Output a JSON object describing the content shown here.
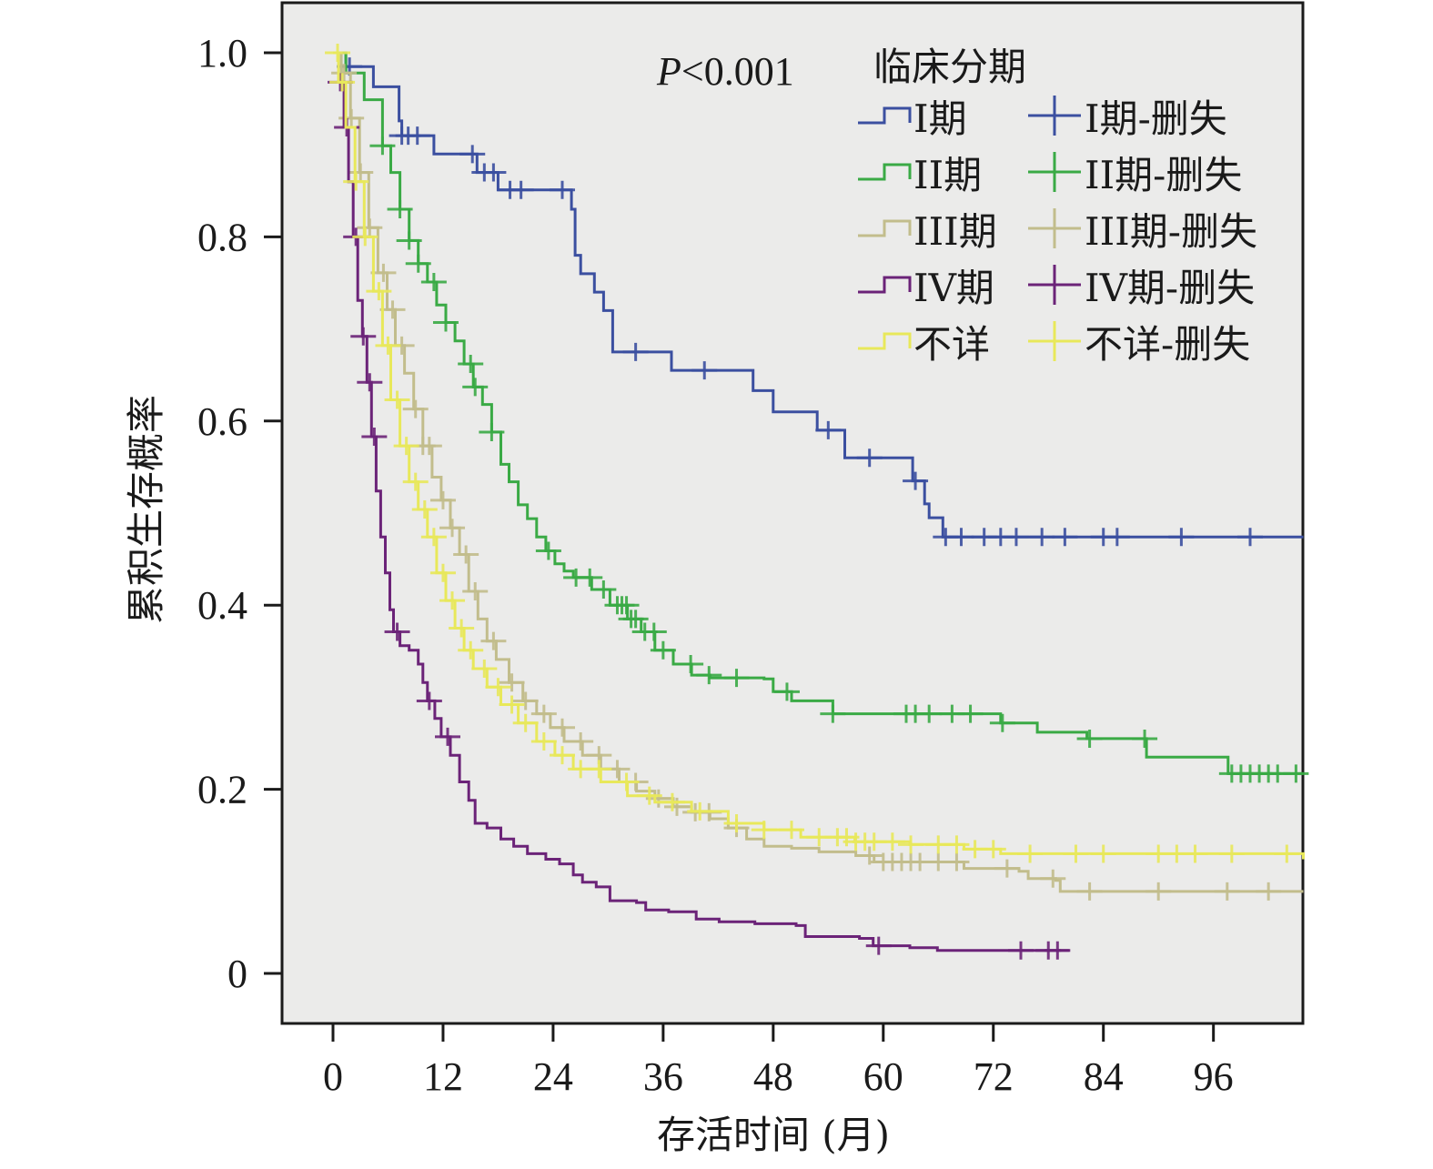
{
  "chart_data": {
    "type": "line",
    "subtype": "kaplan-meier step",
    "xlabel": "存活时间 (月)",
    "ylabel": "累积生存概率",
    "xlim": [
      -5.5,
      105.8
    ],
    "ylim": [
      -0.05,
      1.06
    ],
    "xticks": [
      0,
      12,
      24,
      36,
      48,
      60,
      72,
      84,
      96
    ],
    "xtick_labels": [
      "0",
      "12",
      "24",
      "36",
      "48",
      "60",
      "72",
      "84",
      "96"
    ],
    "yticks": [
      1.0,
      0.8,
      0.6,
      0.4,
      0.2,
      0
    ],
    "ytick_labels": [
      "1.0",
      "0.8",
      "0.6",
      "0.4",
      "0.2",
      "0"
    ],
    "grid": false,
    "annotation": {
      "prefix": "P",
      "text": "<0.001"
    },
    "legend": {
      "title": "临床分期",
      "placement": "top-right",
      "entries": [
        {
          "label": "I期",
          "censor_label": "I期-删失"
        },
        {
          "label": "II期",
          "censor_label": "II期-删失"
        },
        {
          "label": "III期",
          "censor_label": "III期-删失"
        },
        {
          "label": "IV期",
          "censor_label": "IV期-删失"
        },
        {
          "label": "不详",
          "censor_label": "不详-删失"
        }
      ]
    },
    "series": [
      {
        "name": "I期",
        "color": "#3b4fa0",
        "x": [
          0,
          1.4,
          4.4,
          7.2,
          7.5,
          11,
          15.7,
          18,
          26,
          26.4,
          27,
          28.5,
          29.5,
          30.5,
          36.9,
          45.8,
          48,
          52.8,
          55.8,
          63.2,
          64.5,
          65,
          66.5,
          105.8
        ],
        "y": [
          1.0,
          0.985,
          0.963,
          0.926,
          0.91,
          0.89,
          0.87,
          0.851,
          0.83,
          0.78,
          0.76,
          0.74,
          0.72,
          0.675,
          0.655,
          0.633,
          0.61,
          0.59,
          0.56,
          0.535,
          0.51,
          0.495,
          0.474,
          0.474
        ],
        "censored": [
          1.8,
          7.5,
          8.2,
          9.2,
          15.2,
          16.5,
          17.5,
          19.3,
          20.5,
          25,
          33,
          40.5,
          54,
          58.5,
          63.5,
          66.8,
          68.5,
          71,
          72.8,
          74.5,
          77.3,
          79.8,
          84,
          85.5,
          92.5,
          100
        ]
      },
      {
        "name": "II期",
        "color": "#3aaa45",
        "x": [
          0,
          1.4,
          3.4,
          5.4,
          6.3,
          7.3,
          8.3,
          9.3,
          10.3,
          11.3,
          12.3,
          13.3,
          14.3,
          15.3,
          16.3,
          17.3,
          18.3,
          19.2,
          20.2,
          21.2,
          22.2,
          23.2,
          24.2,
          25.2,
          26.2,
          28.2,
          30.2,
          32.1,
          33.6,
          35.1,
          37.1,
          39.1,
          41.1,
          47.0,
          48.0,
          50.0,
          54.0,
          54.5,
          71.8,
          72.8,
          76.3,
          76.8,
          81.7,
          82.2,
          86.7,
          88.7,
          97.1,
          97.6,
          105.8
        ],
        "y": [
          1.0,
          0.978,
          0.949,
          0.899,
          0.87,
          0.83,
          0.796,
          0.771,
          0.751,
          0.726,
          0.707,
          0.687,
          0.662,
          0.637,
          0.618,
          0.588,
          0.553,
          0.534,
          0.509,
          0.494,
          0.474,
          0.459,
          0.445,
          0.437,
          0.43,
          0.417,
          0.4,
          0.385,
          0.371,
          0.351,
          0.336,
          0.324,
          0.321,
          0.32,
          0.306,
          0.296,
          0.296,
          0.282,
          0.282,
          0.272,
          0.272,
          0.262,
          0.262,
          0.255,
          0.255,
          0.235,
          0.235,
          0.217,
          0.217
        ],
        "censored": [
          5.4,
          7.3,
          8.3,
          9.3,
          11,
          12.3,
          15,
          15.5,
          17.3,
          23.5,
          26.5,
          28,
          29.5,
          31,
          31.5,
          32,
          32.5,
          33,
          34,
          35,
          36,
          39,
          41,
          44,
          49.5,
          54.5,
          62.5,
          63.5,
          65,
          67.5,
          69.5,
          73,
          82.5,
          88.5,
          98,
          99,
          100,
          101,
          102,
          103,
          105
        ]
      },
      {
        "name": "III期",
        "color": "#c2bd8c",
        "x": [
          0,
          0.9,
          1.9,
          2.9,
          3.9,
          4.9,
          5.9,
          6.8,
          7.8,
          8.8,
          9.8,
          10.8,
          11.8,
          12.8,
          13.8,
          14.8,
          15.8,
          16.8,
          17.8,
          19.2,
          20.7,
          22.2,
          23.7,
          25.2,
          27.2,
          29.2,
          31.2,
          33.1,
          35.1,
          37.1,
          39.1,
          41.1,
          43.1,
          45.1,
          47.0,
          50.0,
          53.0,
          57.0,
          59.0,
          66.9,
          68.8,
          74.8,
          75.8,
          78.8,
          79.3,
          105.8
        ],
        "y": [
          1.0,
          0.978,
          0.929,
          0.87,
          0.81,
          0.761,
          0.721,
          0.682,
          0.652,
          0.613,
          0.573,
          0.539,
          0.514,
          0.484,
          0.455,
          0.415,
          0.385,
          0.361,
          0.341,
          0.316,
          0.296,
          0.282,
          0.267,
          0.252,
          0.237,
          0.222,
          0.208,
          0.198,
          0.19,
          0.181,
          0.175,
          0.168,
          0.158,
          0.146,
          0.138,
          0.136,
          0.132,
          0.128,
          0.121,
          0.121,
          0.114,
          0.111,
          0.103,
          0.101,
          0.089,
          0.089
        ],
        "censored": [
          1.2,
          2,
          3,
          4,
          5.5,
          6.5,
          7.5,
          9,
          9.8,
          10.5,
          12,
          13,
          14.5,
          15.5,
          17.5,
          19.5,
          21,
          23,
          25,
          27,
          29,
          31,
          33,
          35.5,
          37.5,
          39.5,
          41,
          44,
          58.5,
          60,
          61,
          62,
          63,
          64,
          66,
          68,
          73.5,
          78.5,
          82.5,
          90,
          97.5,
          102
        ]
      },
      {
        "name": "IV期",
        "color": "#6b2378",
        "x": [
          0,
          0.6,
          1.2,
          1.7,
          2.2,
          2.7,
          3.2,
          3.7,
          4.2,
          4.7,
          5.2,
          5.7,
          6.2,
          6.6,
          7.3,
          8.3,
          9.3,
          9.8,
          10.3,
          11.1,
          11.8,
          12.8,
          13.8,
          14.8,
          15.5,
          16.8,
          18.3,
          19.7,
          21.2,
          23.2,
          24.7,
          26.2,
          27.2,
          28.7,
          30.2,
          33.1,
          34.1,
          36.6,
          39.6,
          42.1,
          46.0,
          50.5,
          51.5,
          57.4,
          58.9,
          62.9,
          65.9,
          80.3
        ],
        "y": [
          1.0,
          0.968,
          0.919,
          0.86,
          0.8,
          0.731,
          0.692,
          0.642,
          0.583,
          0.524,
          0.474,
          0.435,
          0.395,
          0.371,
          0.356,
          0.351,
          0.336,
          0.316,
          0.296,
          0.277,
          0.257,
          0.237,
          0.208,
          0.188,
          0.163,
          0.158,
          0.146,
          0.138,
          0.13,
          0.124,
          0.119,
          0.107,
          0.099,
          0.094,
          0.079,
          0.077,
          0.069,
          0.067,
          0.059,
          0.056,
          0.054,
          0.052,
          0.04,
          0.038,
          0.03,
          0.028,
          0.025,
          0.025
        ],
        "censored": [
          0.8,
          1.5,
          2.5,
          3.3,
          4,
          4.5,
          7,
          10.5,
          12.5,
          59.5,
          75,
          78,
          79
        ]
      },
      {
        "name": "不详",
        "color": "#e8e85a",
        "x": [
          0,
          0.6,
          1.4,
          2.4,
          3.4,
          4.4,
          5.4,
          6.3,
          7.3,
          8.3,
          9.3,
          10.3,
          11.3,
          12.3,
          13.3,
          14.3,
          15.3,
          16.8,
          18.3,
          20.2,
          22.2,
          24.2,
          26.2,
          29.2,
          32.1,
          35.1,
          39.1,
          43.1,
          47.0,
          51.0,
          56.9,
          62.9,
          68.8,
          72.8,
          105.8
        ],
        "y": [
          1.0,
          0.968,
          0.919,
          0.86,
          0.8,
          0.741,
          0.682,
          0.623,
          0.573,
          0.534,
          0.504,
          0.474,
          0.435,
          0.405,
          0.375,
          0.351,
          0.331,
          0.311,
          0.292,
          0.272,
          0.252,
          0.237,
          0.222,
          0.208,
          0.193,
          0.186,
          0.176,
          0.163,
          0.156,
          0.148,
          0.143,
          0.14,
          0.135,
          0.13,
          0.124
        ],
        "censored": [
          0.5,
          1,
          2.5,
          3.5,
          5,
          6,
          7,
          8,
          9,
          10,
          11,
          12,
          13,
          14,
          15,
          16.5,
          18,
          19.5,
          21,
          23,
          25,
          27,
          29,
          32,
          34.5,
          37,
          40,
          44,
          47,
          50,
          53,
          55,
          56,
          57,
          58,
          59,
          61,
          63,
          66,
          68,
          70,
          72,
          76,
          81,
          84,
          90,
          92,
          94,
          98,
          104
        ]
      }
    ]
  }
}
